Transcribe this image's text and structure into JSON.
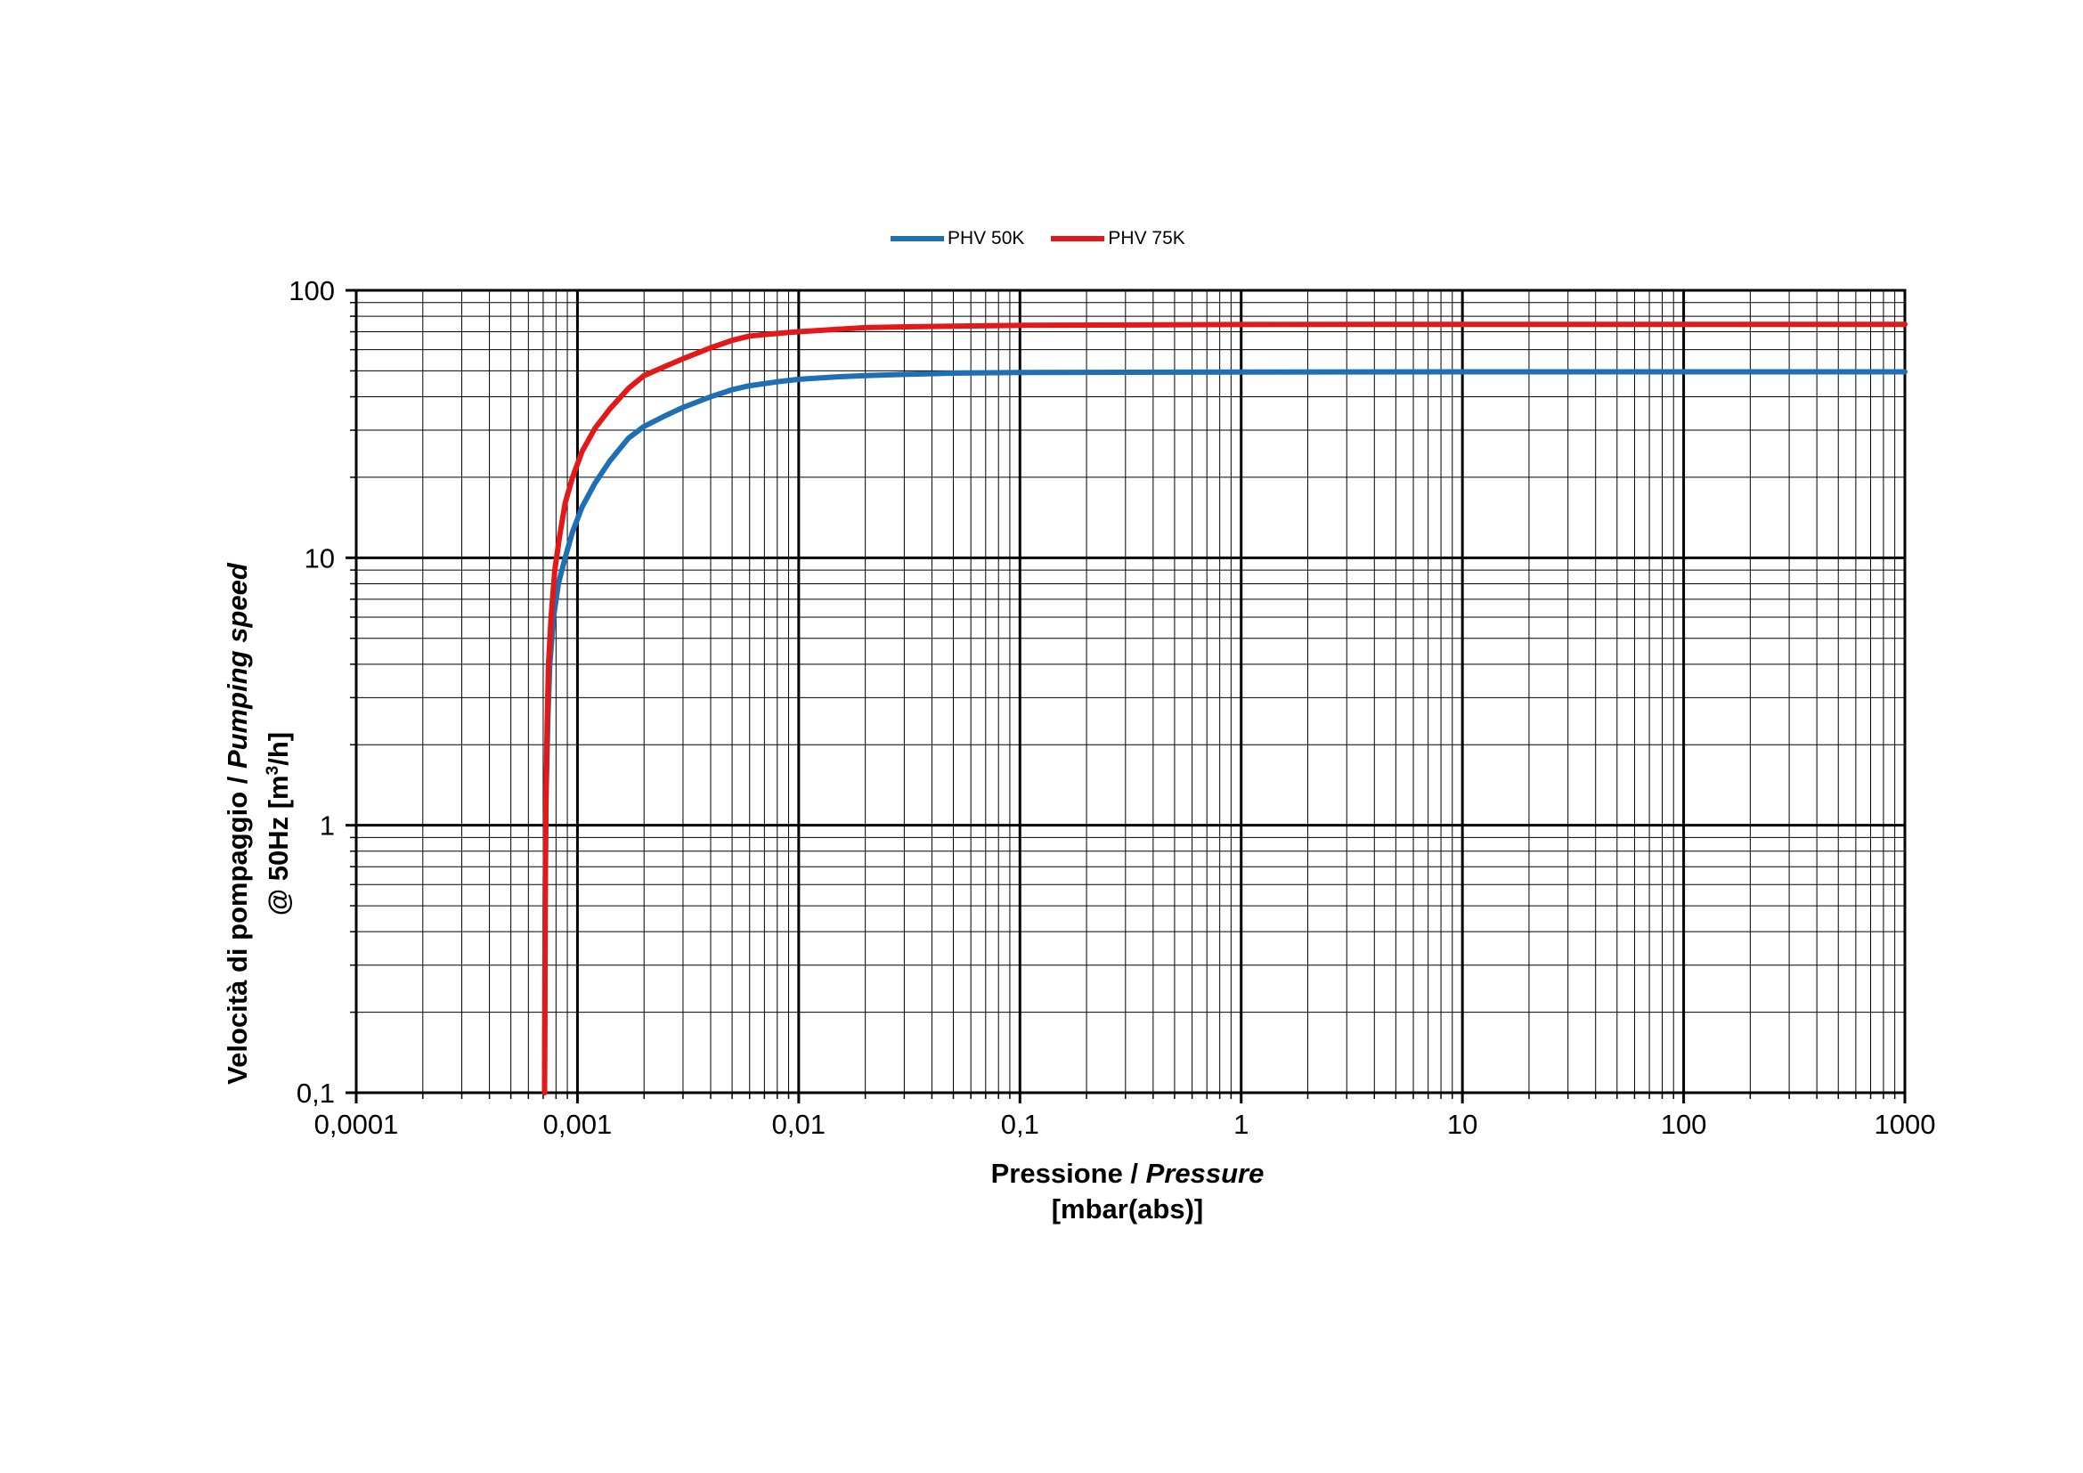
{
  "chart_data": {
    "type": "line",
    "x_scale": "log",
    "y_scale": "log",
    "xlim": [
      0.0001,
      1000
    ],
    "ylim": [
      0.1,
      100
    ],
    "grid": true,
    "legend_position": "top-center",
    "x_ticks": [
      "0,0001",
      "0,001",
      "0,01",
      "0,1",
      "1",
      "10",
      "100",
      "1000"
    ],
    "y_ticks": [
      "0,1",
      "1",
      "10",
      "100"
    ],
    "xlabel_line1_a": "Pressione / ",
    "xlabel_line1_b": "Pressure",
    "xlabel_line2": "[mbar(abs)]",
    "ylabel_line1_a": "Velocità di pompaggio / ",
    "ylabel_line1_b": "Pumping speed",
    "ylabel_line2_a": "@ 50Hz [m",
    "ylabel_line2_sup": "3",
    "ylabel_line2_b": "/h]",
    "series": [
      {
        "name": "PHV 50K",
        "color": "#1f6fb5",
        "x": [
          0.00071,
          0.000715,
          0.00072,
          0.000735,
          0.00075,
          0.00078,
          0.00082,
          0.00088,
          0.00095,
          0.00105,
          0.0012,
          0.0014,
          0.0017,
          0.002,
          0.0025,
          0.003,
          0.004,
          0.005,
          0.006,
          0.008,
          0.01,
          0.015,
          0.02,
          0.03,
          0.05,
          0.1,
          1,
          10,
          100,
          1000
        ],
        "y": [
          0.1,
          0.5,
          1.2,
          2.5,
          4.0,
          6.0,
          8.0,
          10.0,
          12.5,
          15.5,
          19.0,
          23.0,
          28.0,
          31.0,
          34.0,
          36.5,
          40.0,
          42.5,
          44.0,
          45.5,
          46.5,
          47.5,
          48.0,
          48.5,
          49.0,
          49.3,
          49.5,
          49.6,
          49.6,
          49.6
        ]
      },
      {
        "name": "PHV 75K",
        "color": "#e31919",
        "x": [
          0.00071,
          0.000715,
          0.00072,
          0.00073,
          0.00074,
          0.00076,
          0.00079,
          0.00083,
          0.00088,
          0.00095,
          0.00105,
          0.0012,
          0.0014,
          0.0017,
          0.002,
          0.0025,
          0.003,
          0.004,
          0.005,
          0.006,
          0.008,
          0.01,
          0.015,
          0.02,
          0.03,
          0.05,
          0.1,
          1,
          10,
          100,
          1000
        ],
        "y": [
          0.1,
          0.5,
          1.2,
          2.5,
          4.0,
          6.0,
          9.0,
          12.0,
          16.0,
          20.0,
          25.0,
          30.5,
          36.0,
          43.0,
          48.0,
          52.0,
          55.5,
          61.0,
          65.0,
          67.5,
          69.0,
          70.0,
          71.5,
          72.5,
          73.0,
          73.5,
          74.0,
          74.5,
          74.6,
          74.6,
          74.6
        ]
      }
    ]
  }
}
